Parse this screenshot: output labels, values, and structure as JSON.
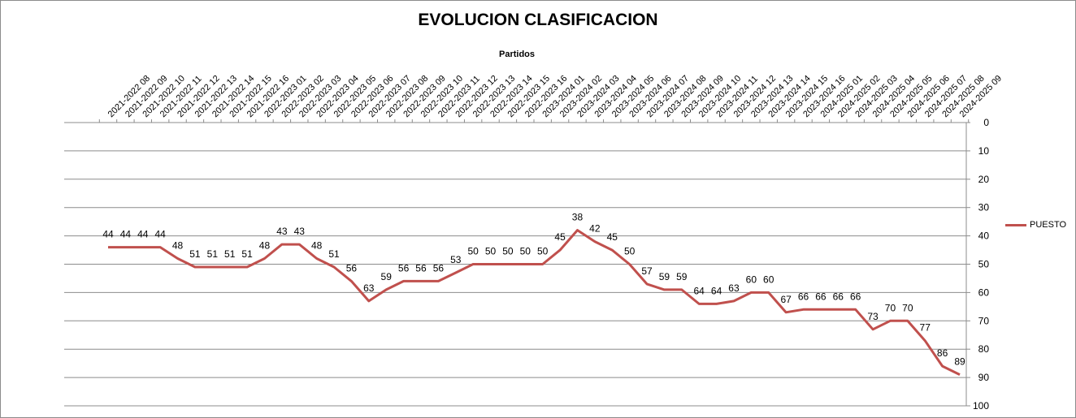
{
  "chart_data": {
    "type": "line",
    "title": "EVOLUCION CLASIFICACION",
    "xlabel": "Partidos",
    "ylabel": "",
    "ylim": [
      0,
      100
    ],
    "y_reversed": true,
    "y_axis_side": "right",
    "x_axis_side": "top",
    "y_ticks": [
      0,
      10,
      20,
      30,
      40,
      50,
      60,
      70,
      80,
      90,
      100
    ],
    "grid": "horizontal",
    "legend_position": "right",
    "series_color": "#c0504d",
    "categories": [
      "2021-2022 08",
      "2021-2022 09",
      "2021-2022 10",
      "2021-2022 11",
      "2021-2022 12",
      "2021-2022 13",
      "2021-2022 14",
      "2021-2022 15",
      "2021-2022 16",
      "2022-2023 01",
      "2022-2023 02",
      "2022-2023 03",
      "2022-2023 04",
      "2022-2023 05",
      "2022-2023 06",
      "2022-2023 07",
      "2022-2023 08",
      "2022-2023 09",
      "2022-2023 10",
      "2022-2023 11",
      "2022-2023 12",
      "2022-2023 13",
      "2022-2023 14",
      "2022-2023 15",
      "2022-2023 16",
      "2023-2024 01",
      "2023-2024 02",
      "2023-2024 03",
      "2023-2024 04",
      "2023-2024 05",
      "2023-2024 06",
      "2023-2024 07",
      "2023-2024 08",
      "2023-2024 09",
      "2023-2024 10",
      "2023-2024 11",
      "2023-2024 12",
      "2023-2024 13",
      "2023-2024 14",
      "2023-2024 15",
      "2023-2024 16",
      "2024-2025 01",
      "2024-2025 02",
      "2024-2025 03",
      "2024-2025 04",
      "2024-2025 05",
      "2024-2025 06",
      "2024-2025 07",
      "2024-2025 08",
      "2024-2025 09"
    ],
    "series": [
      {
        "name": "PUESTO",
        "values": [
          44,
          44,
          44,
          44,
          48,
          51,
          51,
          51,
          51,
          48,
          43,
          43,
          48,
          51,
          56,
          63,
          59,
          56,
          56,
          56,
          53,
          50,
          50,
          50,
          50,
          50,
          45,
          38,
          42,
          45,
          50,
          57,
          59,
          59,
          64,
          64,
          63,
          60,
          60,
          67,
          66,
          66,
          66,
          66,
          73,
          70,
          70,
          77,
          86,
          89
        ]
      }
    ]
  }
}
